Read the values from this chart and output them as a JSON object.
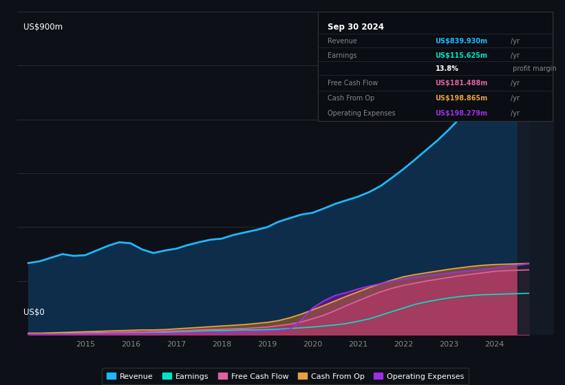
{
  "bg_color": "#0d1117",
  "plot_bg_color": "#0d1117",
  "ylabel": "US$900m",
  "y0label": "US$0",
  "ylim": [
    0,
    900
  ],
  "xlim": [
    2013.5,
    2025.3
  ],
  "xticks": [
    2015,
    2016,
    2017,
    2018,
    2019,
    2020,
    2021,
    2022,
    2023,
    2024
  ],
  "grid_color": "#2a2f3a",
  "series_colors": {
    "Revenue": "#1eb8ff",
    "Earnings": "#00e5c8",
    "FreeCashFlow": "#e060a0",
    "CashFromOp": "#e8a040",
    "OperatingExpenses": "#9b30e0"
  },
  "revenue_fill_color": "#0d2d4a",
  "earnings_fill_color": "#1a3a4a",
  "info_box": {
    "title": "Sep 30 2024",
    "rows": [
      {
        "label": "Revenue",
        "value": "US$839.930m",
        "suffix": "/yr",
        "color": "#1eb8ff"
      },
      {
        "label": "Earnings",
        "value": "US$115.625m",
        "suffix": "/yr",
        "color": "#00e5c8"
      },
      {
        "label": "",
        "value": "13.8%",
        "suffix": " profit margin",
        "color": "#ffffff"
      },
      {
        "label": "Free Cash Flow",
        "value": "US$181.488m",
        "suffix": "/yr",
        "color": "#e060a0"
      },
      {
        "label": "Cash From Op",
        "value": "US$198.865m",
        "suffix": "/yr",
        "color": "#e8a040"
      },
      {
        "label": "Operating Expenses",
        "value": "US$198.279m",
        "suffix": "/yr",
        "color": "#9b30e0"
      }
    ]
  },
  "legend": [
    {
      "label": "Revenue",
      "color": "#1eb8ff"
    },
    {
      "label": "Earnings",
      "color": "#00e5c8"
    },
    {
      "label": "Free Cash Flow",
      "color": "#e060a0"
    },
    {
      "label": "Cash From Op",
      "color": "#e8a040"
    },
    {
      "label": "Operating Expenses",
      "color": "#9b30e0"
    }
  ],
  "x": [
    2013.75,
    2014.0,
    2014.25,
    2014.5,
    2014.75,
    2015.0,
    2015.25,
    2015.5,
    2015.75,
    2016.0,
    2016.25,
    2016.5,
    2016.75,
    2017.0,
    2017.25,
    2017.5,
    2017.75,
    2018.0,
    2018.25,
    2018.5,
    2018.75,
    2019.0,
    2019.25,
    2019.5,
    2019.75,
    2020.0,
    2020.25,
    2020.5,
    2020.75,
    2021.0,
    2021.25,
    2021.5,
    2021.75,
    2022.0,
    2022.25,
    2022.5,
    2022.75,
    2023.0,
    2023.25,
    2023.5,
    2023.75,
    2024.0,
    2024.25,
    2024.5,
    2024.75
  ],
  "revenue": [
    200,
    205,
    215,
    225,
    220,
    222,
    235,
    248,
    258,
    255,
    238,
    228,
    235,
    240,
    250,
    258,
    265,
    268,
    278,
    285,
    292,
    300,
    315,
    325,
    335,
    340,
    352,
    365,
    375,
    385,
    398,
    415,
    438,
    462,
    488,
    515,
    542,
    572,
    605,
    638,
    668,
    700,
    740,
    790,
    840
  ],
  "earnings": [
    3,
    3,
    4,
    4,
    5,
    5,
    6,
    6,
    7,
    7,
    7,
    8,
    8,
    9,
    10,
    11,
    12,
    12,
    13,
    14,
    14,
    15,
    16,
    18,
    20,
    22,
    25,
    28,
    32,
    38,
    45,
    55,
    65,
    75,
    85,
    92,
    98,
    103,
    107,
    110,
    112,
    113,
    114,
    115,
    116
  ],
  "opex": [
    2,
    2,
    2,
    2,
    2,
    2,
    2,
    3,
    3,
    3,
    3,
    4,
    4,
    4,
    5,
    5,
    5,
    6,
    7,
    8,
    9,
    10,
    12,
    16,
    42,
    75,
    95,
    110,
    118,
    128,
    136,
    143,
    150,
    155,
    160,
    165,
    168,
    172,
    176,
    179,
    182,
    186,
    190,
    194,
    198
  ],
  "cfop": [
    5,
    5,
    6,
    7,
    8,
    9,
    10,
    11,
    12,
    13,
    14,
    14,
    15,
    17,
    19,
    21,
    23,
    25,
    27,
    29,
    32,
    35,
    40,
    48,
    58,
    70,
    82,
    95,
    108,
    120,
    132,
    143,
    153,
    162,
    168,
    173,
    178,
    183,
    187,
    191,
    194,
    196,
    197,
    198,
    199
  ],
  "fcf": [
    2,
    2,
    3,
    3,
    4,
    5,
    5,
    6,
    7,
    8,
    8,
    9,
    10,
    11,
    12,
    14,
    15,
    16,
    17,
    18,
    20,
    22,
    26,
    30,
    36,
    45,
    55,
    68,
    82,
    95,
    108,
    120,
    130,
    138,
    144,
    150,
    155,
    160,
    165,
    169,
    173,
    177,
    179,
    180,
    181
  ]
}
